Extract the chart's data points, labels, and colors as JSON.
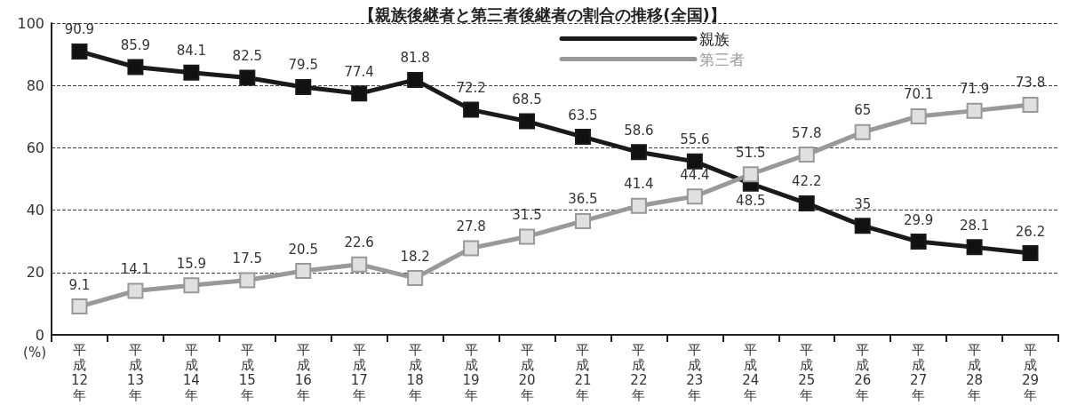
{
  "chart_data": {
    "type": "line",
    "title": "【親族後継者と第三者後継者の割合の推移(全国)】",
    "ylabel": "(%)",
    "categories": [
      "平成12年",
      "平成13年",
      "平成14年",
      "平成15年",
      "平成16年",
      "平成17年",
      "平成18年",
      "平成19年",
      "平成20年",
      "平成21年",
      "平成22年",
      "平成23年",
      "平成24年",
      "平成25年",
      "平成26年",
      "平成27年",
      "平成28年",
      "平成29年"
    ],
    "series": [
      {
        "name": "親族",
        "color": "#1a1a1a",
        "values": [
          90.9,
          85.9,
          84.1,
          82.5,
          79.5,
          77.4,
          81.8,
          72.2,
          68.5,
          63.5,
          58.6,
          55.6,
          48.5,
          42.2,
          35,
          29.9,
          28.1,
          26.2
        ]
      },
      {
        "name": "第三者",
        "color": "#999999",
        "values": [
          9.1,
          14.1,
          15.9,
          17.5,
          20.5,
          22.6,
          18.2,
          27.8,
          31.5,
          36.5,
          41.4,
          44.4,
          51.5,
          57.8,
          65,
          70.1,
          71.9,
          73.8
        ]
      }
    ],
    "ylim": [
      0,
      100
    ],
    "yticks": [
      0,
      20,
      40,
      60,
      80,
      100
    ],
    "grid": "y",
    "legend": "top right",
    "marker": "square",
    "line_style": "solid",
    "data_labels": true
  }
}
